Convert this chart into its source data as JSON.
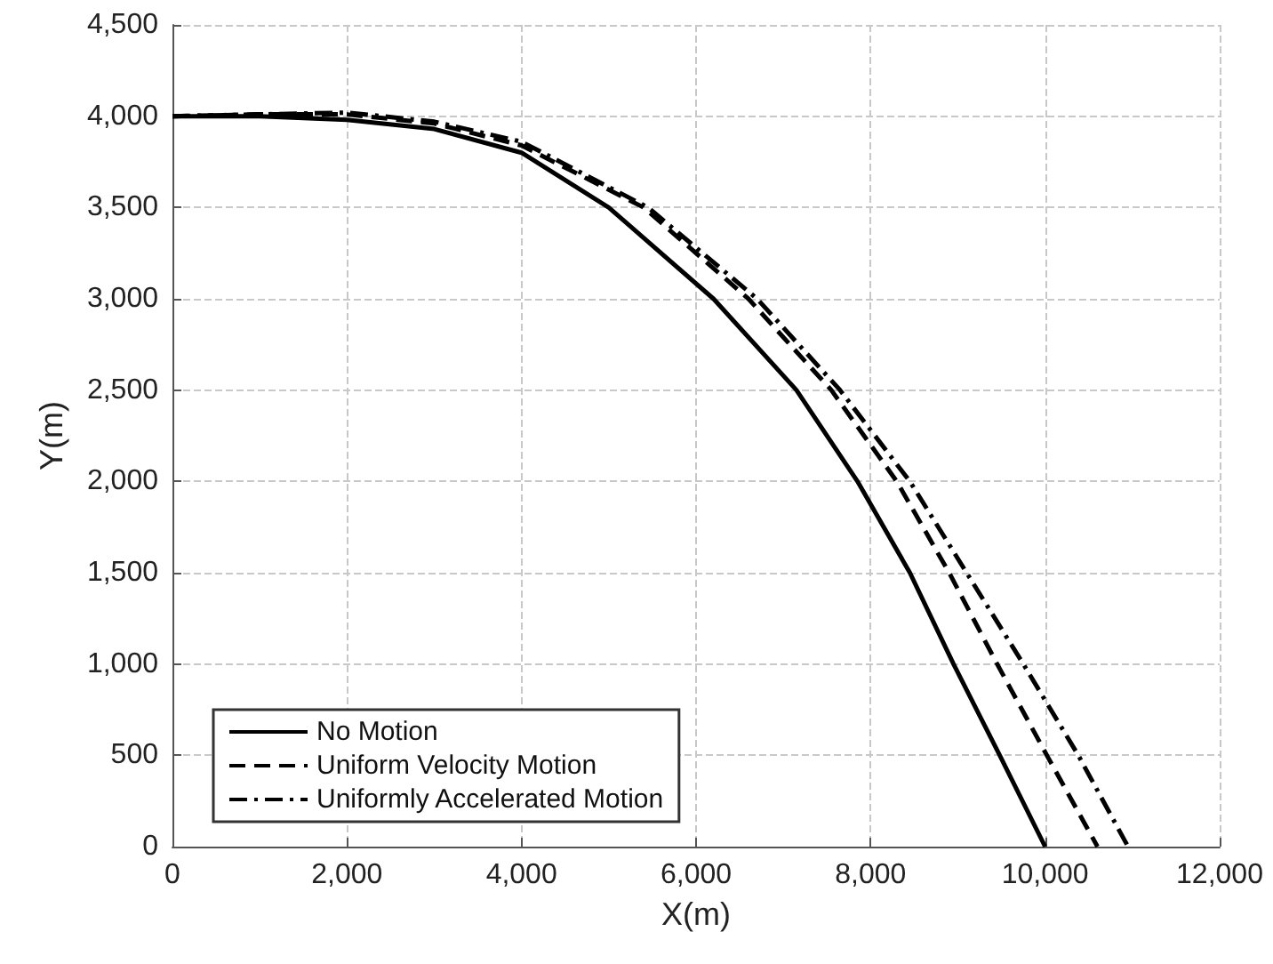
{
  "chart_data": {
    "type": "line",
    "xlabel": "X(m)",
    "ylabel": "Y(m)",
    "xlim": [
      0,
      12000
    ],
    "xticks": [
      0,
      {
        "value": 2000,
        "label": "2,000"
      },
      {
        "value": 4000,
        "label": "4,000"
      },
      {
        "value": 6000,
        "label": "6,000"
      },
      {
        "value": 8000,
        "label": "8,000"
      },
      {
        "value": 10000,
        "label": "10,000"
      },
      {
        "value": 12000,
        "label": "12,000"
      }
    ],
    "ylim": [
      0,
      4500
    ],
    "yticks": [
      0,
      500,
      {
        "value": 1000,
        "label": "1,000"
      },
      {
        "value": 1500,
        "label": "1,500"
      },
      {
        "value": 2000,
        "label": "2,000"
      },
      {
        "value": 2500,
        "label": "2,500"
      },
      {
        "value": 3000,
        "label": "3,000"
      },
      {
        "value": 3500,
        "label": "3,500"
      },
      {
        "value": 4000,
        "label": "4,000"
      },
      {
        "value": 4500,
        "label": "4,500"
      }
    ],
    "grid": true,
    "legend": "bottom left",
    "marker": "none",
    "series": [
      {
        "name": "No Motion",
        "color": "#000000",
        "line_style": "solid",
        "x": [
          0,
          1000,
          2000,
          3000,
          4000,
          5000,
          6200,
          7150,
          7850,
          8450,
          8950,
          9480,
          10000
        ],
        "values": [
          4000,
          4000,
          3980,
          3930,
          3800,
          3500,
          3000,
          2500,
          2000,
          1500,
          1000,
          500,
          0
        ]
      },
      {
        "name": "Uniform Velocity Motion",
        "color": "#000000",
        "line_style": "dashed",
        "x": [
          0,
          1000,
          2000,
          3000,
          4000,
          5400,
          6600,
          7550,
          8300,
          8900,
          9450,
          10020,
          10600
        ],
        "values": [
          4000,
          4010,
          4010,
          3960,
          3840,
          3500,
          3000,
          2500,
          2000,
          1500,
          1000,
          500,
          0
        ]
      },
      {
        "name": "Uniformly Accelerated Motion",
        "color": "#000000",
        "line_style": "dashdot",
        "x": [
          0,
          1000,
          2000,
          3000,
          4000,
          5450,
          6700,
          7650,
          8450,
          9100,
          9750,
          10380,
          10950
        ],
        "values": [
          4000,
          4010,
          4020,
          3970,
          3860,
          3500,
          3000,
          2500,
          2000,
          1500,
          1000,
          500,
          0
        ]
      }
    ]
  }
}
